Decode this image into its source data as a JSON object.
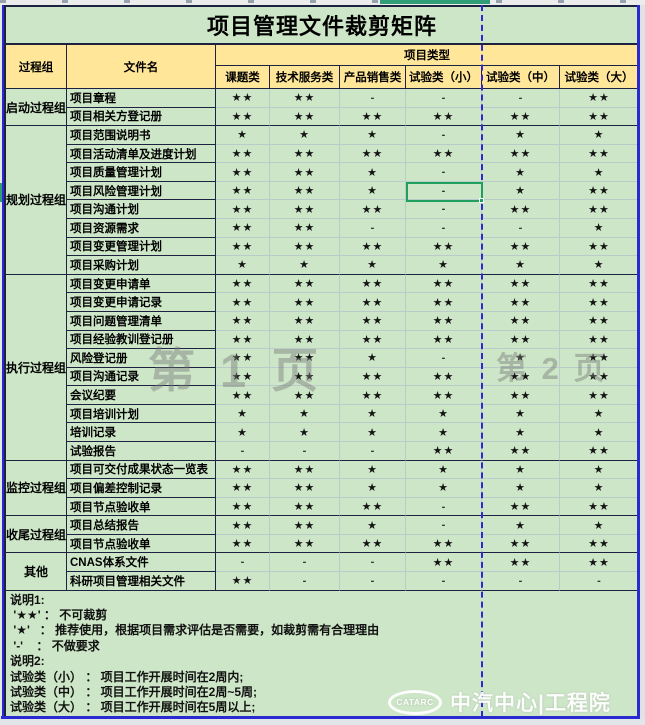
{
  "title": "项目管理文件裁剪矩阵",
  "header": {
    "process_group": "过程组",
    "file_name": "文件名",
    "project_type": "项目类型",
    "type_columns": [
      "课题类",
      "技术服务类",
      "产品销售类",
      "试验类（小）",
      "试验类（中）",
      "试验类（大）"
    ]
  },
  "sections": [
    {
      "group": "启动过程组",
      "rows": [
        {
          "name": "项目章程",
          "values": [
            "★★",
            "★★",
            "-",
            "-",
            "-",
            "★★"
          ]
        },
        {
          "name": "项目相关方登记册",
          "values": [
            "★★",
            "★★",
            "★★",
            "★★",
            "★★",
            "★★"
          ]
        }
      ]
    },
    {
      "group": "规划过程组",
      "rows": [
        {
          "name": "项目范围说明书",
          "values": [
            "★",
            "★",
            "★",
            "-",
            "★",
            "★"
          ]
        },
        {
          "name": "项目活动清单及进度计划",
          "values": [
            "★★",
            "★★",
            "★★",
            "★★",
            "★★",
            "★★"
          ]
        },
        {
          "name": "项目质量管理计划",
          "values": [
            "★★",
            "★★",
            "★",
            "-",
            "★",
            "★"
          ]
        },
        {
          "name": "项目风险管理计划",
          "values": [
            "★★",
            "★★",
            "★",
            "-",
            "★",
            "★★"
          ]
        },
        {
          "name": "项目沟通计划",
          "values": [
            "★★",
            "★★",
            "★★",
            "-",
            "★★",
            "★★"
          ]
        },
        {
          "name": "项目资源需求",
          "values": [
            "★★",
            "★★",
            "-",
            "-",
            "-",
            "★"
          ]
        },
        {
          "name": "项目变更管理计划",
          "values": [
            "★★",
            "★★",
            "★★",
            "★★",
            "★★",
            "★★"
          ]
        },
        {
          "name": "项目采购计划",
          "values": [
            "★",
            "★",
            "★",
            "★",
            "★",
            "★"
          ]
        }
      ]
    },
    {
      "group": "执行过程组",
      "rows": [
        {
          "name": "项目变更申请单",
          "values": [
            "★★",
            "★★",
            "★★",
            "★★",
            "★★",
            "★★"
          ]
        },
        {
          "name": "项目变更申请记录",
          "values": [
            "★★",
            "★★",
            "★★",
            "★★",
            "★★",
            "★★"
          ]
        },
        {
          "name": "项目问题管理清单",
          "values": [
            "★★",
            "★★",
            "★★",
            "★★",
            "★★",
            "★★"
          ]
        },
        {
          "name": "项目经验教训登记册",
          "values": [
            "★★",
            "★★",
            "★★",
            "★★",
            "★★",
            "★★"
          ]
        },
        {
          "name": "风险登记册",
          "values": [
            "★★",
            "★★",
            "★",
            "-",
            "★",
            "★★"
          ]
        },
        {
          "name": "项目沟通记录",
          "values": [
            "★★",
            "★★",
            "★★",
            "★★",
            "★★",
            "★★"
          ]
        },
        {
          "name": "会议纪要",
          "values": [
            "★★",
            "★★",
            "★★",
            "★★",
            "★★",
            "★★"
          ]
        },
        {
          "name": "项目培训计划",
          "values": [
            "★",
            "★",
            "★",
            "★",
            "★",
            "★"
          ]
        },
        {
          "name": "培训记录",
          "values": [
            "★",
            "★",
            "★",
            "★",
            "★",
            "★"
          ]
        },
        {
          "name": "试验报告",
          "values": [
            "-",
            "-",
            "-",
            "★★",
            "★★",
            "★★"
          ]
        }
      ]
    },
    {
      "group": "监控过程组",
      "rows": [
        {
          "name": "项目可交付成果状态一览表",
          "values": [
            "★★",
            "★★",
            "★",
            "★",
            "★",
            "★"
          ]
        },
        {
          "name": "项目偏差控制记录",
          "values": [
            "★★",
            "★★",
            "★",
            "★",
            "★",
            "★"
          ]
        },
        {
          "name": "项目节点验收单",
          "values": [
            "★★",
            "★★",
            "★★",
            "-",
            "★★",
            "★★"
          ]
        }
      ]
    },
    {
      "group": "收尾过程组",
      "rows": [
        {
          "name": "项目总结报告",
          "values": [
            "★★",
            "★★",
            "★",
            "-",
            "★",
            "★"
          ]
        },
        {
          "name": "项目节点验收单",
          "values": [
            "★★",
            "★★",
            "★★",
            "★★",
            "★★",
            "★★"
          ]
        }
      ]
    },
    {
      "group": "其他",
      "rows": [
        {
          "name": "CNAS体系文件",
          "values": [
            "-",
            "-",
            "-",
            "★★",
            "★★",
            "★★"
          ]
        },
        {
          "name": "科研项目管理相关文件",
          "values": [
            "★★",
            "-",
            "-",
            "-",
            "-",
            "-"
          ]
        }
      ]
    }
  ],
  "notes": [
    "说明1:",
    " '★★' ： 不可裁剪",
    " '★'   ： 推荐使用，根据项目需求评估是否需要，如裁剪需有合理理由",
    " '-'    ： 不做要求",
    "说明2:",
    "试验类（小） ： 项目工作开展时间在2周内;",
    "试验类（中） ： 项目工作开展时间在2周~5周;",
    "试验类（大） ： 项目工作开展时间在5周以上;"
  ],
  "watermarks": {
    "page1": "第 1 页",
    "page2": "第 2 页"
  },
  "logo": {
    "badge": "CATARC",
    "text": "中汽中心|工程院"
  },
  "selected_cell": {
    "row_label": "项目风险管理计划",
    "column_label": "试验类（小）",
    "value": "-"
  },
  "colors": {
    "cell_green": "#cde6c7",
    "header_yellow": "#ffe699",
    "page_break_blue": "#2a2ad0",
    "selection_green": "#1fa05f",
    "border_dark": "#1c2240",
    "column_highlight_teal": "#2f9e77"
  }
}
